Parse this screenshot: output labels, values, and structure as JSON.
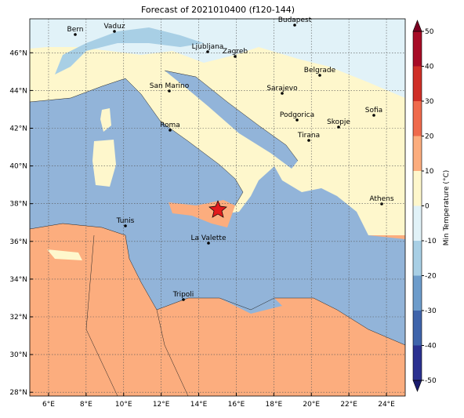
{
  "title": "Forecast of 2021010400 (f120-144)",
  "map": {
    "xlim": [
      5,
      25
    ],
    "ylim": [
      27.8,
      47.8
    ],
    "xticks": [
      {
        "value": 6,
        "label": "6°E"
      },
      {
        "value": 8,
        "label": "8°E"
      },
      {
        "value": 10,
        "label": "10°E"
      },
      {
        "value": 12,
        "label": "12°E"
      },
      {
        "value": 14,
        "label": "14°E"
      },
      {
        "value": 16,
        "label": "16°E"
      },
      {
        "value": 18,
        "label": "18°E"
      },
      {
        "value": 20,
        "label": "20°E"
      },
      {
        "value": 22,
        "label": "22°E"
      },
      {
        "value": 24,
        "label": "24°E"
      }
    ],
    "yticks": [
      {
        "value": 28,
        "label": "28°N"
      },
      {
        "value": 30,
        "label": "30°N"
      },
      {
        "value": 32,
        "label": "32°N"
      },
      {
        "value": 34,
        "label": "34°N"
      },
      {
        "value": 36,
        "label": "36°N"
      },
      {
        "value": 38,
        "label": "38°N"
      },
      {
        "value": 40,
        "label": "40°N"
      },
      {
        "value": 42,
        "label": "42°N"
      },
      {
        "value": 44,
        "label": "44°N"
      },
      {
        "value": 46,
        "label": "46°N"
      }
    ],
    "grid": true,
    "cities": [
      "Bern",
      "Vaduz",
      "Budapest",
      "Ljubljana",
      "Zagreb",
      "Belgrade",
      "San Marino",
      "Sarajevo",
      "Sofia",
      "Podgorica",
      "Skopje",
      "Roma",
      "Tirana",
      "Athens",
      "Tunis",
      "La Valette",
      "Tripoli"
    ]
  },
  "colorbar": {
    "label": "Min Temperature (°C)",
    "lim": [
      -50,
      50
    ],
    "ticks": [
      -50,
      -40,
      -30,
      -20,
      -10,
      0,
      10,
      20,
      30,
      40,
      50
    ],
    "colors": [
      "#2b3190",
      "#3f64ab",
      "#6d9ccb",
      "#a8cfe5",
      "#e1f2f8",
      "#fef7cc",
      "#fcad7e",
      "#ef6a4c",
      "#cf2f27",
      "#a70b26"
    ],
    "under": "#1a1c6e",
    "over": "#7a0020"
  }
}
